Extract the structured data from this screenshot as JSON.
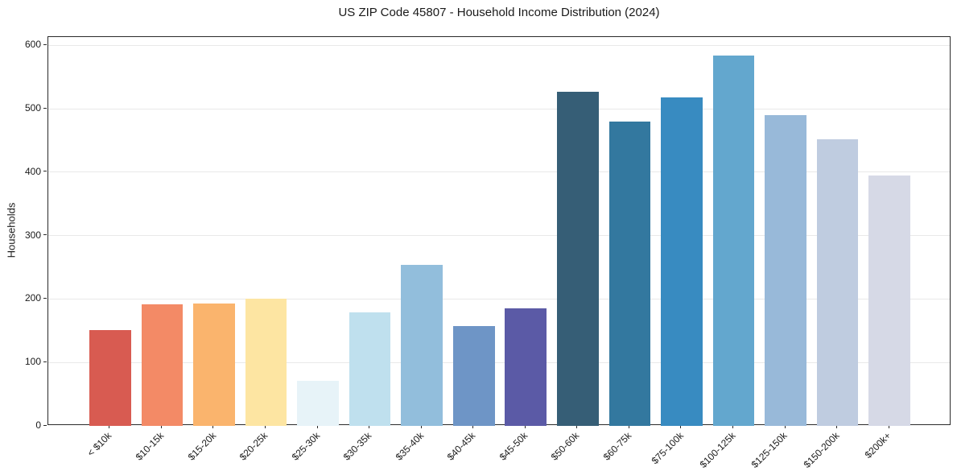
{
  "chart_data": {
    "type": "bar",
    "title": "US ZIP Code 45807 - Household Income Distribution (2024)",
    "ylabel": "Households",
    "xlabel": "",
    "categories": [
      "< $10k",
      "$10-15k",
      "$15-20k",
      "$20-25k",
      "$25-30k",
      "$30-35k",
      "$35-40k",
      "$40-45k",
      "$45-50k",
      "$50-60k",
      "$60-75k",
      "$75-100k",
      "$100-125k",
      "$125-150k",
      "$150-200k",
      "$200k+"
    ],
    "values": [
      151,
      192,
      193,
      201,
      71,
      179,
      254,
      158,
      185,
      527,
      480,
      518,
      584,
      490,
      452,
      395
    ],
    "bar_colors": [
      "#d85b51",
      "#f38a66",
      "#fab46d",
      "#fde5a2",
      "#e7f3f8",
      "#bfe0ee",
      "#92bedc",
      "#6e95c6",
      "#5b5aa6",
      "#365e76",
      "#33789f",
      "#388bc1",
      "#63a7ce",
      "#98b9d9",
      "#bfcce0",
      "#d6d9e6"
    ],
    "yticks": [
      0,
      100,
      200,
      300,
      400,
      500,
      600
    ],
    "ylim": [
      0,
      613
    ],
    "grid": true,
    "legend": null,
    "background_color": "#ffffff",
    "grid_color": "#e9e9e9",
    "axis_color": "#2a2a2a",
    "text_color": "#1a1a1a"
  }
}
